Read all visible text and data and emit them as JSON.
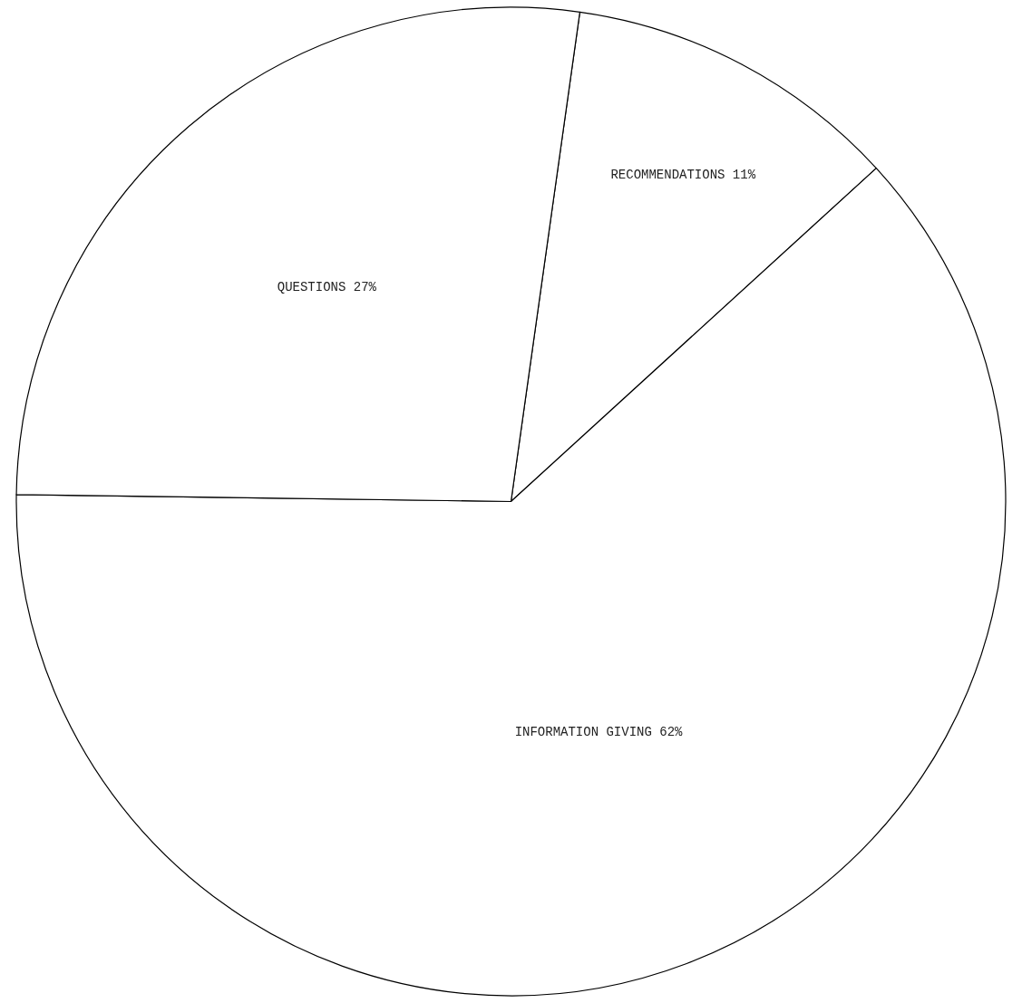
{
  "chart_data": {
    "type": "pie",
    "categories": [
      "RECOMMENDATIONS",
      "INFORMATION GIVING",
      "QUESTIONS"
    ],
    "values": [
      11,
      62,
      27
    ],
    "value_labels": [
      "11%",
      "62%",
      "27%"
    ],
    "colors": [
      "#ffffff",
      "#ffffff",
      "#ffffff"
    ],
    "legend": false
  }
}
